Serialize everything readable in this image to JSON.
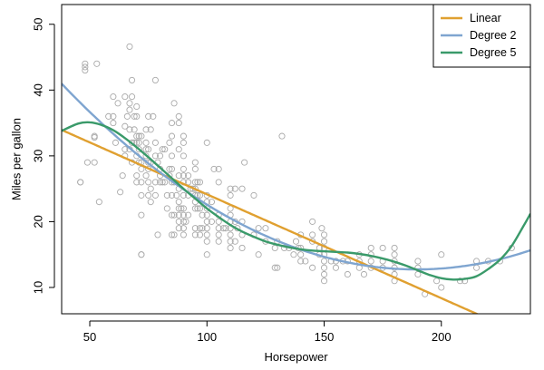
{
  "chart_data": {
    "type": "scatter",
    "title": "",
    "xlabel": "Horsepower",
    "ylabel": "Miles per gallon",
    "xlim": [
      38,
      238
    ],
    "ylim": [
      6,
      53
    ],
    "xticks": [
      50,
      100,
      150,
      200
    ],
    "yticks": [
      10,
      20,
      30,
      40,
      50
    ],
    "grid": false,
    "legend_position": "top-right",
    "point_color": "#aaaaaa",
    "points": [
      [
        46,
        26
      ],
      [
        46,
        26
      ],
      [
        48,
        43
      ],
      [
        48,
        44
      ],
      [
        48,
        43.5
      ],
      [
        49,
        29
      ],
      [
        52,
        29
      ],
      [
        52,
        33
      ],
      [
        52,
        32.8
      ],
      [
        53,
        44
      ],
      [
        54,
        23
      ],
      [
        58,
        36
      ],
      [
        60,
        39
      ],
      [
        60,
        36
      ],
      [
        60,
        35
      ],
      [
        61,
        32
      ],
      [
        62,
        38
      ],
      [
        63,
        24.5
      ],
      [
        64,
        27
      ],
      [
        65,
        34.5
      ],
      [
        65,
        31
      ],
      [
        65,
        30
      ],
      [
        65,
        39
      ],
      [
        66,
        36
      ],
      [
        67,
        38
      ],
      [
        67,
        31
      ],
      [
        67,
        46.6
      ],
      [
        67,
        34
      ],
      [
        67,
        37
      ],
      [
        68,
        32
      ],
      [
        68,
        29
      ],
      [
        68,
        41.5
      ],
      [
        68,
        39
      ],
      [
        69,
        32
      ],
      [
        69,
        36
      ],
      [
        69,
        34
      ],
      [
        70,
        32
      ],
      [
        70,
        27
      ],
      [
        70,
        33
      ],
      [
        70,
        26
      ],
      [
        70,
        30
      ],
      [
        70,
        36
      ],
      [
        70,
        37.5
      ],
      [
        71,
        32
      ],
      [
        71,
        29
      ],
      [
        71,
        31
      ],
      [
        71,
        33
      ],
      [
        72,
        15
      ],
      [
        72,
        15
      ],
      [
        72,
        28
      ],
      [
        72,
        29
      ],
      [
        72,
        26
      ],
      [
        72,
        21
      ],
      [
        72,
        24
      ],
      [
        72,
        33
      ],
      [
        74,
        27
      ],
      [
        74,
        30
      ],
      [
        74,
        32
      ],
      [
        74,
        34
      ],
      [
        74,
        31
      ],
      [
        75,
        29
      ],
      [
        75,
        26
      ],
      [
        75,
        24
      ],
      [
        75,
        28
      ],
      [
        75,
        31
      ],
      [
        75,
        36
      ],
      [
        76,
        25
      ],
      [
        76,
        23
      ],
      [
        76,
        34
      ],
      [
        76,
        29
      ],
      [
        77,
        36
      ],
      [
        78,
        26
      ],
      [
        78,
        24
      ],
      [
        78,
        30
      ],
      [
        78,
        32
      ],
      [
        78,
        41.5
      ],
      [
        79,
        18
      ],
      [
        79,
        29
      ],
      [
        80,
        26
      ],
      [
        80,
        27
      ],
      [
        80,
        30
      ],
      [
        80,
        28
      ],
      [
        81,
        26
      ],
      [
        81,
        31
      ],
      [
        82,
        26
      ],
      [
        82,
        31
      ],
      [
        83,
        22
      ],
      [
        83,
        24
      ],
      [
        84,
        27
      ],
      [
        84,
        28
      ],
      [
        84,
        32
      ],
      [
        85,
        18
      ],
      [
        85,
        21
      ],
      [
        85,
        24
      ],
      [
        85,
        26
      ],
      [
        85,
        28
      ],
      [
        85,
        30
      ],
      [
        85,
        33
      ],
      [
        85,
        35
      ],
      [
        86,
        18
      ],
      [
        86,
        21
      ],
      [
        86,
        26
      ],
      [
        86,
        38
      ],
      [
        87,
        24
      ],
      [
        88,
        19
      ],
      [
        88,
        20
      ],
      [
        88,
        21
      ],
      [
        88,
        22
      ],
      [
        88,
        23
      ],
      [
        88,
        25
      ],
      [
        88,
        27
      ],
      [
        88,
        31
      ],
      [
        88,
        35
      ],
      [
        88,
        36
      ],
      [
        89,
        22
      ],
      [
        90,
        18
      ],
      [
        90,
        19
      ],
      [
        90,
        20
      ],
      [
        90,
        21
      ],
      [
        90,
        22
      ],
      [
        90,
        24
      ],
      [
        90,
        26
      ],
      [
        90,
        27
      ],
      [
        90,
        28
      ],
      [
        90,
        30
      ],
      [
        90,
        32
      ],
      [
        90,
        33
      ],
      [
        91,
        20
      ],
      [
        92,
        21
      ],
      [
        92,
        24
      ],
      [
        92,
        26
      ],
      [
        92,
        27
      ],
      [
        93,
        25
      ],
      [
        94,
        25
      ],
      [
        95,
        18
      ],
      [
        95,
        19
      ],
      [
        95,
        22
      ],
      [
        95,
        23
      ],
      [
        95,
        24
      ],
      [
        95,
        25
      ],
      [
        95,
        26
      ],
      [
        95,
        28
      ],
      [
        95,
        29
      ],
      [
        96,
        22
      ],
      [
        96,
        24
      ],
      [
        96,
        26
      ],
      [
        97,
        18
      ],
      [
        97,
        19
      ],
      [
        97,
        22
      ],
      [
        97,
        24
      ],
      [
        97,
        26
      ],
      [
        98,
        21
      ],
      [
        98,
        19
      ],
      [
        100,
        15
      ],
      [
        100,
        17
      ],
      [
        100,
        18
      ],
      [
        100,
        19
      ],
      [
        100,
        20
      ],
      [
        100,
        21
      ],
      [
        100,
        22
      ],
      [
        100,
        23
      ],
      [
        100,
        24
      ],
      [
        100,
        32
      ],
      [
        102,
        23
      ],
      [
        102,
        20
      ],
      [
        103,
        28
      ],
      [
        105,
        17
      ],
      [
        105,
        18
      ],
      [
        105,
        19
      ],
      [
        105,
        20
      ],
      [
        105,
        21
      ],
      [
        105,
        26
      ],
      [
        105,
        28
      ],
      [
        107,
        19
      ],
      [
        108,
        19
      ],
      [
        110,
        16
      ],
      [
        110,
        17
      ],
      [
        110,
        18
      ],
      [
        110,
        19
      ],
      [
        110,
        20
      ],
      [
        110,
        21
      ],
      [
        110,
        22
      ],
      [
        110,
        24
      ],
      [
        110,
        25
      ],
      [
        112,
        17
      ],
      [
        112,
        20
      ],
      [
        112,
        25
      ],
      [
        113,
        19
      ],
      [
        115,
        16
      ],
      [
        115,
        18
      ],
      [
        115,
        20
      ],
      [
        115,
        25
      ],
      [
        116,
        29
      ],
      [
        120,
        18
      ],
      [
        120,
        24
      ],
      [
        122,
        15
      ],
      [
        122,
        19
      ],
      [
        125,
        17
      ],
      [
        125,
        19
      ],
      [
        129,
        13
      ],
      [
        129,
        16
      ],
      [
        130,
        13
      ],
      [
        130,
        17
      ],
      [
        132,
        33
      ],
      [
        133,
        16
      ],
      [
        135,
        16
      ],
      [
        137,
        15
      ],
      [
        138,
        17
      ],
      [
        139,
        16
      ],
      [
        140,
        14
      ],
      [
        140,
        15
      ],
      [
        140,
        16
      ],
      [
        140,
        18
      ],
      [
        142,
        14
      ],
      [
        145,
        13
      ],
      [
        145,
        17
      ],
      [
        145,
        18
      ],
      [
        145,
        20
      ],
      [
        148,
        15
      ],
      [
        148,
        16
      ],
      [
        149,
        19
      ],
      [
        150,
        11
      ],
      [
        150,
        12
      ],
      [
        150,
        13
      ],
      [
        150,
        14
      ],
      [
        150,
        15
      ],
      [
        150,
        16
      ],
      [
        150,
        17
      ],
      [
        150,
        18
      ],
      [
        153,
        14
      ],
      [
        155,
        13
      ],
      [
        155,
        14
      ],
      [
        158,
        14
      ],
      [
        160,
        12
      ],
      [
        160,
        14
      ],
      [
        165,
        13
      ],
      [
        165,
        14
      ],
      [
        165,
        15
      ],
      [
        167,
        12
      ],
      [
        170,
        13
      ],
      [
        170,
        14
      ],
      [
        170,
        15
      ],
      [
        170,
        16
      ],
      [
        175,
        13
      ],
      [
        175,
        14
      ],
      [
        175,
        16
      ],
      [
        180,
        11
      ],
      [
        180,
        12
      ],
      [
        180,
        13
      ],
      [
        180,
        14
      ],
      [
        180,
        15
      ],
      [
        180,
        16
      ],
      [
        190,
        12
      ],
      [
        190,
        13
      ],
      [
        190,
        14
      ],
      [
        193,
        9
      ],
      [
        198,
        11
      ],
      [
        200,
        10
      ],
      [
        200,
        15
      ],
      [
        208,
        11
      ],
      [
        210,
        11
      ],
      [
        215,
        13
      ],
      [
        215,
        14
      ],
      [
        220,
        14
      ],
      [
        225,
        14
      ],
      [
        230,
        16
      ]
    ],
    "series": [
      {
        "name": "Linear",
        "color": "#E0A030",
        "kind": "polynomial",
        "coefficients": [
          39.936,
          -0.157845
        ]
      },
      {
        "name": "Degree 2",
        "color": "#7FA5D0",
        "kind": "polynomial",
        "coefficients": [
          56.9001,
          -0.46619,
          0.0012305
        ]
      },
      {
        "name": "Degree 5",
        "color": "#3A9A6A",
        "kind": "curve",
        "x": [
          38,
          45,
          50,
          55,
          60,
          65,
          70,
          75,
          80,
          85,
          90,
          95,
          100,
          105,
          110,
          115,
          120,
          125,
          130,
          135,
          140,
          145,
          150,
          155,
          160,
          165,
          170,
          175,
          180,
          185,
          190,
          195,
          200,
          205,
          210,
          215,
          220,
          225,
          230,
          235,
          238
        ],
        "y": [
          33.8,
          34.9,
          35.1,
          34.7,
          33.9,
          32.7,
          31.3,
          29.8,
          28.2,
          26.6,
          25.0,
          23.5,
          22.0,
          20.7,
          19.5,
          18.5,
          17.7,
          17.0,
          16.5,
          16.1,
          15.8,
          15.6,
          15.5,
          15.4,
          15.3,
          15.1,
          14.8,
          14.4,
          13.9,
          13.3,
          12.6,
          11.9,
          11.4,
          11.2,
          11.3,
          11.7,
          12.8,
          14.2,
          16.3,
          19.3,
          21.2
        ]
      }
    ]
  }
}
